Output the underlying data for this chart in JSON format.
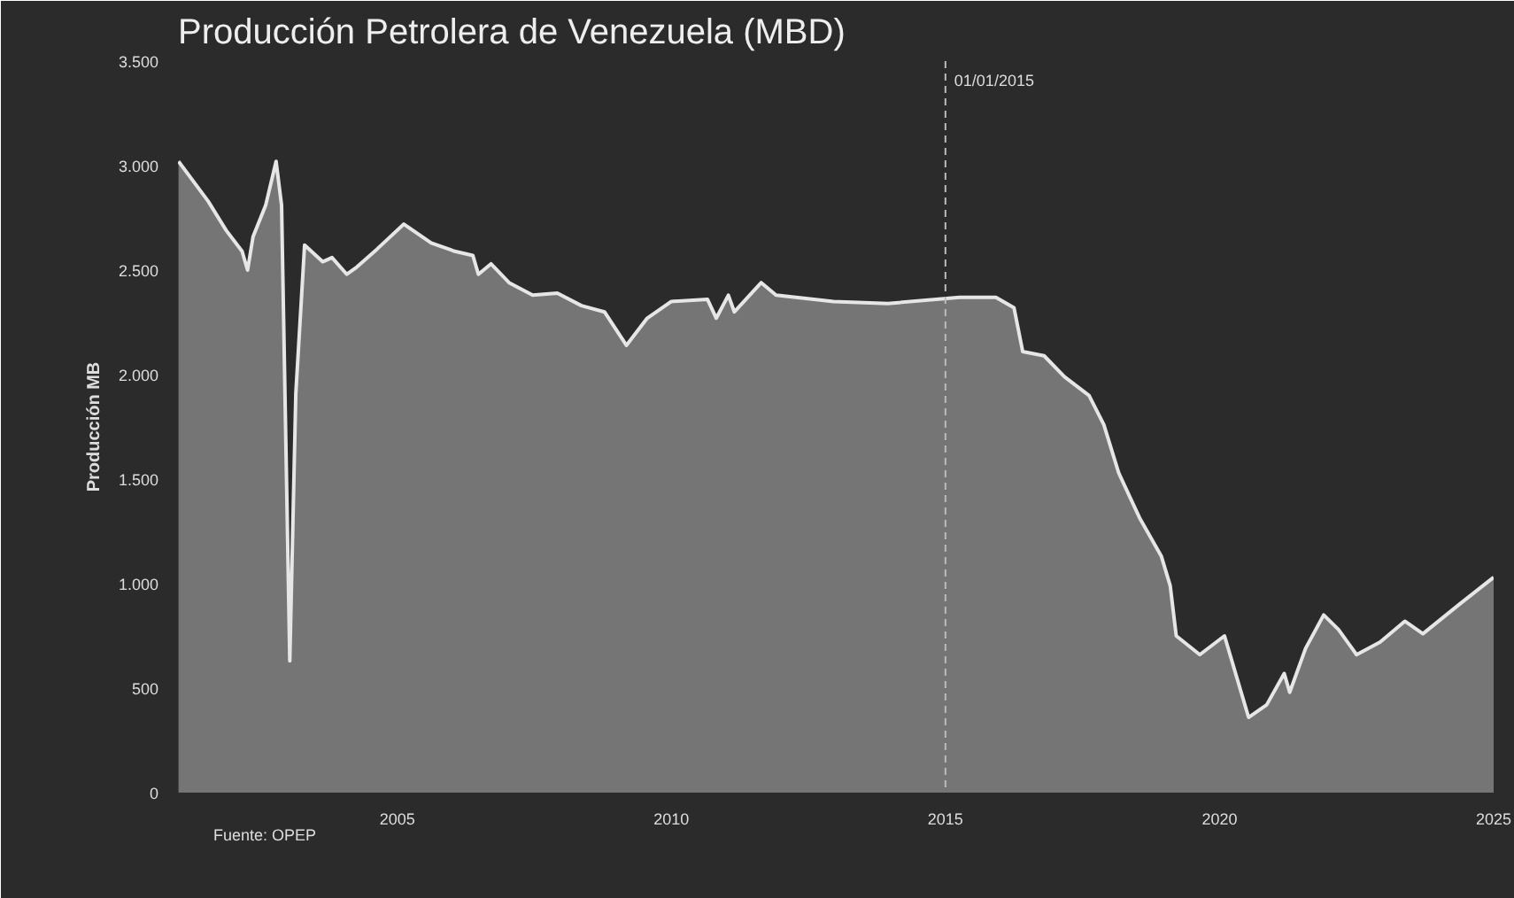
{
  "chart_data": {
    "type": "area",
    "title": "Producción Petrolera de Venezuela (MBD)",
    "ylabel": "Producción MB",
    "annotations": [
      "Fuente: OPEP"
    ],
    "x": [
      2001.01,
      2001.55,
      2001.88,
      2002.17,
      2002.27,
      2002.37,
      2002.6,
      2002.79,
      2002.89,
      2003.04,
      2003.15,
      2003.31,
      2003.64,
      2003.81,
      2004.08,
      2004.24,
      2004.63,
      2005.12,
      2005.62,
      2006.05,
      2006.38,
      2006.48,
      2006.71,
      2007.04,
      2007.47,
      2007.92,
      2008.36,
      2008.78,
      2009.18,
      2009.56,
      2010.0,
      2010.66,
      2010.82,
      2011.04,
      2011.15,
      2011.64,
      2011.91,
      2012.96,
      2013.95,
      2015.26,
      2015.92,
      2016.25,
      2016.41,
      2016.8,
      2017.17,
      2017.62,
      2017.89,
      2018.16,
      2018.55,
      2018.94,
      2019.1,
      2019.21,
      2019.64,
      2020.09,
      2020.53,
      2020.86,
      2021.18,
      2021.28,
      2021.57,
      2021.9,
      2022.17,
      2022.5,
      2022.93,
      2023.38,
      2023.71,
      2024.37,
      2025.0
    ],
    "series": [
      {
        "color": "#e6e6e6",
        "values": [
          3020,
          2830,
          2690,
          2590,
          2500,
          2660,
          2810,
          3020,
          2810,
          630,
          1910,
          2620,
          2540,
          2560,
          2480,
          2510,
          2600,
          2720,
          2630,
          2590,
          2570,
          2480,
          2530,
          2440,
          2380,
          2390,
          2330,
          2300,
          2140,
          2270,
          2350,
          2360,
          2270,
          2380,
          2300,
          2440,
          2380,
          2350,
          2340,
          2370,
          2370,
          2320,
          2110,
          2090,
          1990,
          1900,
          1760,
          1530,
          1310,
          1130,
          990,
          750,
          660,
          750,
          360,
          420,
          570,
          480,
          690,
          850,
          780,
          660,
          720,
          820,
          760,
          900,
          1030
        ]
      }
    ],
    "xlim": [
      2001,
      2025
    ],
    "xticks": [
      2005,
      2010,
      2015,
      2020,
      2025
    ],
    "ylim": [
      0,
      3500
    ],
    "yticks": [
      0,
      {
        "value": 500,
        "label": "500"
      },
      {
        "value": 1000,
        "label": "1.000"
      },
      {
        "value": 1500,
        "label": "1.500"
      },
      {
        "value": 2000,
        "label": "2.000"
      },
      {
        "value": 2500,
        "label": "2.500"
      },
      {
        "value": 3000,
        "label": "3.000"
      },
      {
        "value": 3500,
        "label": "3.500"
      }
    ],
    "ref_lines": [
      {
        "axis": "x",
        "value": 2015,
        "label": "01/01/2015",
        "color": "#bbbbbb",
        "line_style": "dashed"
      }
    ],
    "grid": false
  }
}
